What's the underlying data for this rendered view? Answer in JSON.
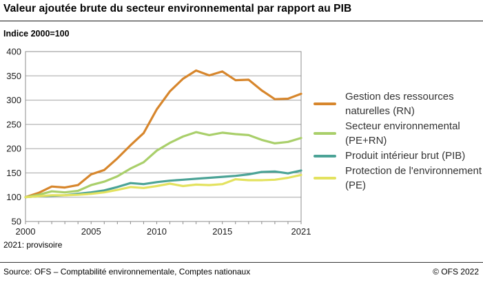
{
  "header": {
    "title": "Valeur ajoutée brute du secteur environnemental par rapport au PIB",
    "subtitle": "Indice 2000=100"
  },
  "note": "2021: provisoire",
  "footer": {
    "source": "Source: OFS – Comptabilité environnementale, Comptes nationaux",
    "copyright": "© OFS 2022"
  },
  "colors": {
    "grid": "#a3a3a3",
    "plot_border": "#8c8c8c",
    "axis_text": "#1a1a1a"
  },
  "chart_data": {
    "type": "line",
    "title": "Valeur ajoutée brute du secteur environnemental par rapport au PIB",
    "subtitle": "Indice 2000=100",
    "xlabel": "",
    "ylabel": "Indice 2000=100",
    "x": [
      2000,
      2001,
      2002,
      2003,
      2004,
      2005,
      2006,
      2007,
      2008,
      2009,
      2010,
      2011,
      2012,
      2013,
      2014,
      2015,
      2016,
      2017,
      2018,
      2019,
      2020,
      2021
    ],
    "xticks": [
      2000,
      2005,
      2010,
      2015,
      2021
    ],
    "ylim": [
      50,
      400
    ],
    "yticks": [
      50,
      100,
      150,
      200,
      250,
      300,
      350,
      400
    ],
    "grid": true,
    "legend_position": "right",
    "series": [
      {
        "name": "Gestion des ressources naturelles (RN)",
        "color": "#d7862c",
        "values": [
          100,
          109,
          122,
          120,
          125,
          147,
          156,
          180,
          207,
          232,
          281,
          318,
          344,
          361,
          351,
          359,
          341,
          342,
          320,
          302,
          303,
          313
        ]
      },
      {
        "name": "Secteur environnemental (PE+RN)",
        "color": "#a9cf6a",
        "values": [
          100,
          105,
          112,
          110,
          113,
          125,
          132,
          143,
          159,
          172,
          196,
          212,
          225,
          234,
          228,
          233,
          230,
          228,
          218,
          211,
          214,
          222
        ]
      },
      {
        "name": "Produit intérieur brut (PIB)",
        "color": "#4ba396",
        "values": [
          100,
          102,
          103,
          104,
          107,
          110,
          114,
          121,
          129,
          127,
          131,
          134,
          136,
          138,
          140,
          142,
          144,
          147,
          152,
          153,
          149,
          155
        ]
      },
      {
        "name": "Protection de l'environnement (PE)",
        "color": "#e3e25f",
        "values": [
          100,
          102,
          104,
          104,
          105,
          107,
          110,
          115,
          121,
          119,
          123,
          128,
          123,
          126,
          125,
          127,
          137,
          135,
          135,
          136,
          140,
          146
        ]
      }
    ]
  }
}
